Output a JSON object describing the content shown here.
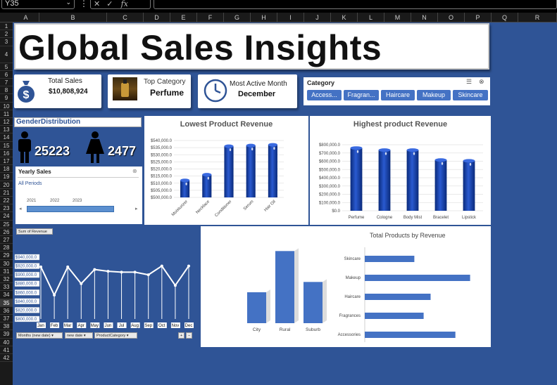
{
  "formula_bar": {
    "name_box": "Y35",
    "fx_label": "fx"
  },
  "columns": [
    "A",
    "B",
    "C",
    "D",
    "E",
    "F",
    "G",
    "H",
    "I",
    "J",
    "K",
    "L",
    "M",
    "N",
    "O",
    "P",
    "Q",
    "R"
  ],
  "rows": [
    "1",
    "2",
    "3",
    "4",
    "5",
    "6",
    "7",
    "8",
    "9",
    "10",
    "11",
    "12",
    "13",
    "14",
    "15",
    "16",
    "17",
    "18",
    "19",
    "20",
    "21",
    "22",
    "23",
    "24",
    "25",
    "26",
    "27",
    "28",
    "29",
    "30",
    "31",
    "32",
    "33",
    "34",
    "35",
    "36",
    "37",
    "38",
    "39",
    "40",
    "41",
    "42"
  ],
  "title": "Global Sales Insights",
  "kpis": {
    "total_sales_label": "Total Sales",
    "total_sales_value": "$10,808,924",
    "top_category_label": "Top Category",
    "top_category_value": "Perfume",
    "active_month_label": "Most Active Month",
    "active_month_value": "December"
  },
  "category_slicer": {
    "title": "Category",
    "items": [
      "Access...",
      "Fragran...",
      "Haircare",
      "Makeup",
      "Skincare"
    ]
  },
  "gender": {
    "title": "GenderDistribution",
    "male": "25223",
    "female": "2477"
  },
  "timeline": {
    "title": "Yearly Sales",
    "period": "All Periods",
    "years": [
      "2021",
      "2022",
      "2023"
    ]
  },
  "lowest_chart": {
    "title": "Lowest Product Revenue",
    "ticks": [
      "$540,000.0",
      "$535,000.0",
      "$530,000.0",
      "$525,000.0",
      "$520,000.0",
      "$515,000.0",
      "$510,000.0",
      "$505,000.0",
      "$500,000.0"
    ]
  },
  "highest_chart": {
    "title": "Highest product Revenue",
    "ticks": [
      "$800,000.0",
      "$700,000.0",
      "$600,000.0",
      "$500,000.0",
      "$400,000.0",
      "$300,000.0",
      "$200,000.0",
      "$100,000.0",
      "$0.0"
    ]
  },
  "line_chart": {
    "field_button": "Sum of Revenue",
    "ticks": [
      "$940,000.0",
      "$920,000.0",
      "$900,000.0",
      "$880,000.0",
      "$860,000.0",
      "$840,000.0",
      "$820,000.0",
      "$800,000.0"
    ],
    "filters": [
      "Months (new date)",
      "new date",
      "ProductCategory"
    ]
  },
  "location_chart": {
    "title": "Total Products by Revenue"
  },
  "chart_data": [
    {
      "type": "bar",
      "title": "Lowest Product Revenue",
      "categories": [
        "Moisturizer",
        "Necklace",
        "Conditioner",
        "Serum",
        "Hair Oil"
      ],
      "values": [
        512000,
        516000,
        536000,
        536500,
        537000
      ],
      "ylim": [
        500000,
        540000
      ]
    },
    {
      "type": "bar",
      "title": "Highest product Revenue",
      "categories": [
        "Perfume",
        "Cologne",
        "Body Mist",
        "Bracelet",
        "Lipstick"
      ],
      "values": [
        760000,
        735000,
        735000,
        615000,
        605000
      ],
      "ylim": [
        0,
        800000
      ]
    },
    {
      "type": "line",
      "categories": [
        "Jan",
        "Feb",
        "Mar",
        "Apr",
        "May",
        "Jun",
        "Jul",
        "Aug",
        "Sep",
        "Oct",
        "Nov",
        "Dec"
      ],
      "values": [
        918000,
        854000,
        918000,
        880000,
        912000,
        908000,
        906000,
        906000,
        900000,
        920000,
        876000,
        920000
      ],
      "ylim": [
        800000,
        940000
      ]
    },
    {
      "type": "bar",
      "categories": [
        "City",
        "Rural",
        "Suburb"
      ],
      "values": [
        36,
        84,
        48
      ]
    },
    {
      "type": "bar",
      "orientation": "horizontal",
      "title": "Total Products by Revenue",
      "categories": [
        "Skincare",
        "Makeup",
        "Haircare",
        "Fragrances",
        "Accessories"
      ],
      "values": [
        64,
        136,
        85,
        76,
        117
      ]
    }
  ]
}
